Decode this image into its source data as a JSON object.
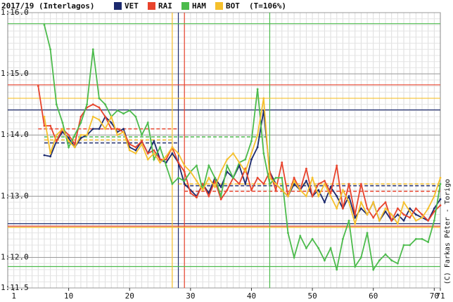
{
  "chart_data": {
    "type": "line",
    "title": "2017/19 (Interlagos)",
    "note": "(T=106%)",
    "credit": "(C) Farkas Péter - Torigo",
    "xlim": [
      0,
      71
    ],
    "xticks": [
      1,
      10,
      20,
      30,
      40,
      50,
      60,
      70,
      71
    ],
    "ylim": [
      71.5,
      76.0
    ],
    "yticks": [
      {
        "value": 71.5,
        "label": "1:11.5"
      },
      {
        "value": 72,
        "label": "1:12.0"
      },
      {
        "value": 73,
        "label": "1:13.0"
      },
      {
        "value": 74,
        "label": "1:14.0"
      },
      {
        "value": 75,
        "label": "1:15.0"
      },
      {
        "value": 76,
        "label": "1:16.0"
      }
    ],
    "grid": true,
    "x": [
      5,
      6,
      7,
      8,
      9,
      10,
      11,
      12,
      13,
      14,
      15,
      16,
      17,
      18,
      19,
      20,
      21,
      22,
      23,
      24,
      25,
      26,
      27,
      28,
      29,
      30,
      31,
      32,
      33,
      34,
      35,
      36,
      37,
      38,
      39,
      40,
      41,
      42,
      43,
      44,
      45,
      46,
      47,
      48,
      49,
      50,
      51,
      52,
      53,
      54,
      55,
      56,
      57,
      58,
      59,
      60,
      61,
      62,
      63,
      64,
      65,
      66,
      67,
      68,
      69,
      70,
      71
    ],
    "series": [
      {
        "name": "VET",
        "color": "#1c2a6e",
        "pit_lap": 28,
        "ref_lines": [
          74.41,
          72.55
        ],
        "stints": [
          [
            6,
            28,
            73.87
          ],
          [
            29,
            71,
            73.17
          ]
        ],
        "values": [
          null,
          73.67,
          73.65,
          73.9,
          74.05,
          73.95,
          73.8,
          73.95,
          74.0,
          74.1,
          74.1,
          74.3,
          74.2,
          74.05,
          74.1,
          73.8,
          73.75,
          73.9,
          73.7,
          73.9,
          73.6,
          73.55,
          73.7,
          73.55,
          73.2,
          73.1,
          73.0,
          73.2,
          73.05,
          73.3,
          73.15,
          73.4,
          73.3,
          73.5,
          73.2,
          73.6,
          73.8,
          74.4,
          73.4,
          73.2,
          73.1,
          73.0,
          73.2,
          73.1,
          73.25,
          73.0,
          73.1,
          72.9,
          73.15,
          73.0,
          72.8,
          73.0,
          72.65,
          72.8,
          72.7,
          72.9,
          72.6,
          72.75,
          72.6,
          72.7,
          72.6,
          72.8,
          72.7,
          72.65,
          72.6,
          72.8,
          72.95
        ]
      },
      {
        "name": "RAI",
        "color": "#e8432c",
        "pit_lap": 29,
        "ref_lines": [
          74.82,
          72.51
        ],
        "stints": [
          [
            5,
            28,
            74.1
          ],
          [
            29,
            71,
            73.08
          ]
        ],
        "values": [
          74.8,
          74.15,
          74.15,
          73.9,
          74.1,
          74.0,
          73.85,
          74.3,
          74.45,
          74.5,
          74.45,
          74.3,
          74.1,
          74.1,
          74.05,
          73.85,
          73.8,
          73.9,
          73.7,
          73.75,
          73.6,
          73.6,
          73.8,
          73.55,
          73.4,
          73.05,
          72.98,
          73.2,
          73.0,
          73.25,
          72.95,
          73.1,
          73.3,
          73.2,
          73.45,
          73.1,
          73.3,
          73.2,
          73.4,
          73.1,
          73.55,
          73.0,
          73.3,
          73.1,
          73.45,
          73.0,
          73.2,
          73.25,
          73.05,
          73.5,
          72.8,
          73.2,
          72.7,
          73.2,
          72.8,
          72.65,
          72.8,
          72.9,
          72.6,
          72.8,
          72.7,
          72.65,
          72.8,
          72.7,
          72.6,
          72.75,
          72.85
        ]
      },
      {
        "name": "HAM",
        "color": "#4cbb4c",
        "pit_lap": 43,
        "ref_lines": [
          75.82,
          71.85
        ],
        "stints": [
          [
            6,
            43,
            73.97
          ]
        ],
        "values": [
          null,
          75.8,
          75.4,
          74.5,
          74.2,
          73.8,
          74.0,
          74.2,
          74.5,
          75.4,
          74.6,
          74.5,
          74.3,
          74.4,
          74.35,
          74.4,
          74.3,
          74.0,
          74.2,
          73.6,
          73.8,
          73.5,
          73.2,
          73.3,
          73.25,
          73.4,
          73.5,
          73.1,
          73.5,
          73.3,
          73.0,
          73.5,
          73.3,
          73.55,
          73.6,
          73.9,
          74.75,
          73.7,
          73.2,
          73.3,
          73.3,
          72.4,
          72.0,
          72.35,
          72.15,
          72.3,
          72.15,
          71.95,
          72.15,
          71.8,
          72.3,
          72.6,
          71.85,
          72.0,
          72.4,
          71.8,
          71.95,
          72.05,
          71.95,
          71.9,
          72.2,
          72.2,
          72.3,
          72.3,
          72.25,
          72.6,
          73.2
        ]
      },
      {
        "name": "BOT",
        "color": "#f5c02c",
        "pit_lap": 27,
        "ref_lines": [
          74.6,
          72.49
        ],
        "stints": [
          [
            6,
            27,
            73.92
          ],
          [
            28,
            71,
            73.2
          ]
        ],
        "values": [
          null,
          74.3,
          73.7,
          74.0,
          74.1,
          73.9,
          73.8,
          74.0,
          74.0,
          74.3,
          74.25,
          74.1,
          74.3,
          74.0,
          74.05,
          73.75,
          73.7,
          73.85,
          73.6,
          73.7,
          73.55,
          73.65,
          73.8,
          73.7,
          73.5,
          73.4,
          73.25,
          73.1,
          73.3,
          73.15,
          73.4,
          73.6,
          73.7,
          73.55,
          73.4,
          73.7,
          74.0,
          74.6,
          73.3,
          73.2,
          73.1,
          73.0,
          73.25,
          73.1,
          73.0,
          73.3,
          73.0,
          73.2,
          73.0,
          72.8,
          73.1,
          72.9,
          72.55,
          72.9,
          72.7,
          72.9,
          72.6,
          72.8,
          72.7,
          72.55,
          72.9,
          72.75,
          72.6,
          72.65,
          72.8,
          73.0,
          73.3
        ]
      }
    ]
  }
}
